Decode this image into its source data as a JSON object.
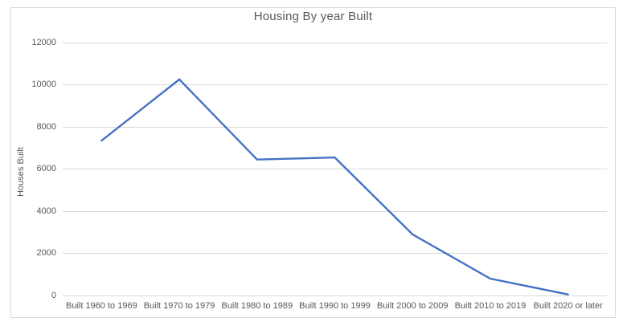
{
  "chart_data": {
    "type": "line",
    "title": "Housing By year Built",
    "xlabel": "",
    "ylabel": "Houses Built",
    "categories": [
      "Built 1960 to 1969",
      "Built 1970 to 1979",
      "Built 1980 to 1989",
      "Built 1990 to 1999",
      "Built 2000 to 2009",
      "Built 2010 to 2019",
      "Built 2020 or later"
    ],
    "series": [
      {
        "name": "Houses Built",
        "values": [
          7350,
          10250,
          6450,
          6550,
          2900,
          800,
          50
        ]
      }
    ],
    "ylim": [
      0,
      12000
    ],
    "yticks": [
      0,
      2000,
      4000,
      6000,
      8000,
      10000,
      12000
    ],
    "grid": true,
    "legend_position": "none",
    "colors": {
      "line": "#4472C4",
      "gridline": "#d9d9d9",
      "axis_line": "#d9d9d9",
      "text": "#595959",
      "chart_border": "#d9d9d9",
      "background": "#ffffff"
    }
  }
}
